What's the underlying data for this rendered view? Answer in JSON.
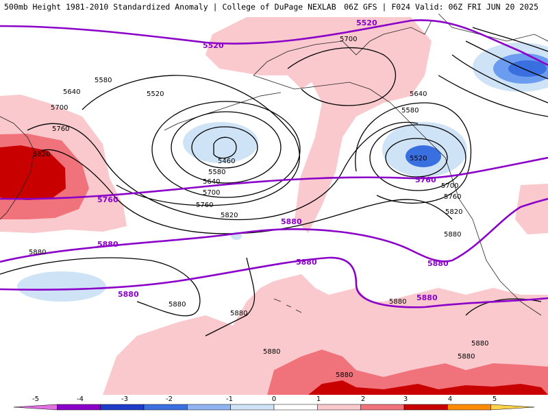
{
  "header": {
    "left_title": "500mb Height 1981-2010 Standardized Anomaly | College of DuPage NEXLAB",
    "right_title": "06Z GFS | F024 Valid: 06Z FRI JUN 20 2025"
  },
  "colors": {
    "contour_black": "#000000",
    "contour_purple": "#8a00c8",
    "coast": "#222222",
    "anom_pos1": "#f9c9cd",
    "anom_pos2": "#f0727a",
    "anom_pos3": "#c80000",
    "anom_neg1": "#cfe3f7",
    "anom_neg2": "#6c9cef",
    "anom_neg3": "#3a6fe0"
  },
  "contour_labels": {
    "black": [
      "5700",
      "5580",
      "5520",
      "5640",
      "5700",
      "5760",
      "5820",
      "5460",
      "5580",
      "5640",
      "5700",
      "5760",
      "5820",
      "5580",
      "5640",
      "5520",
      "5700",
      "5760",
      "5820",
      "5880",
      "5880",
      "5880",
      "5880",
      "5880",
      "5880",
      "5880",
      "5880",
      "5880"
    ],
    "purple": [
      "5520",
      "5520",
      "5760",
      "5760",
      "5880",
      "5880",
      "5880",
      "5880",
      "5880",
      "5880"
    ]
  },
  "colorbar": {
    "labels": [
      "-5",
      "-4",
      "-3",
      "-2",
      "-1",
      "0",
      "1",
      "2",
      "3",
      "4",
      "5"
    ],
    "colors": [
      "#e070e0",
      "#8a00c8",
      "#1e3cc8",
      "#3a6fe0",
      "#8fb4f0",
      "#cfe3f7",
      "#ffffff",
      "#f9c9cd",
      "#f0727a",
      "#c80000",
      "#ff8c00",
      "#ffd24a"
    ]
  }
}
